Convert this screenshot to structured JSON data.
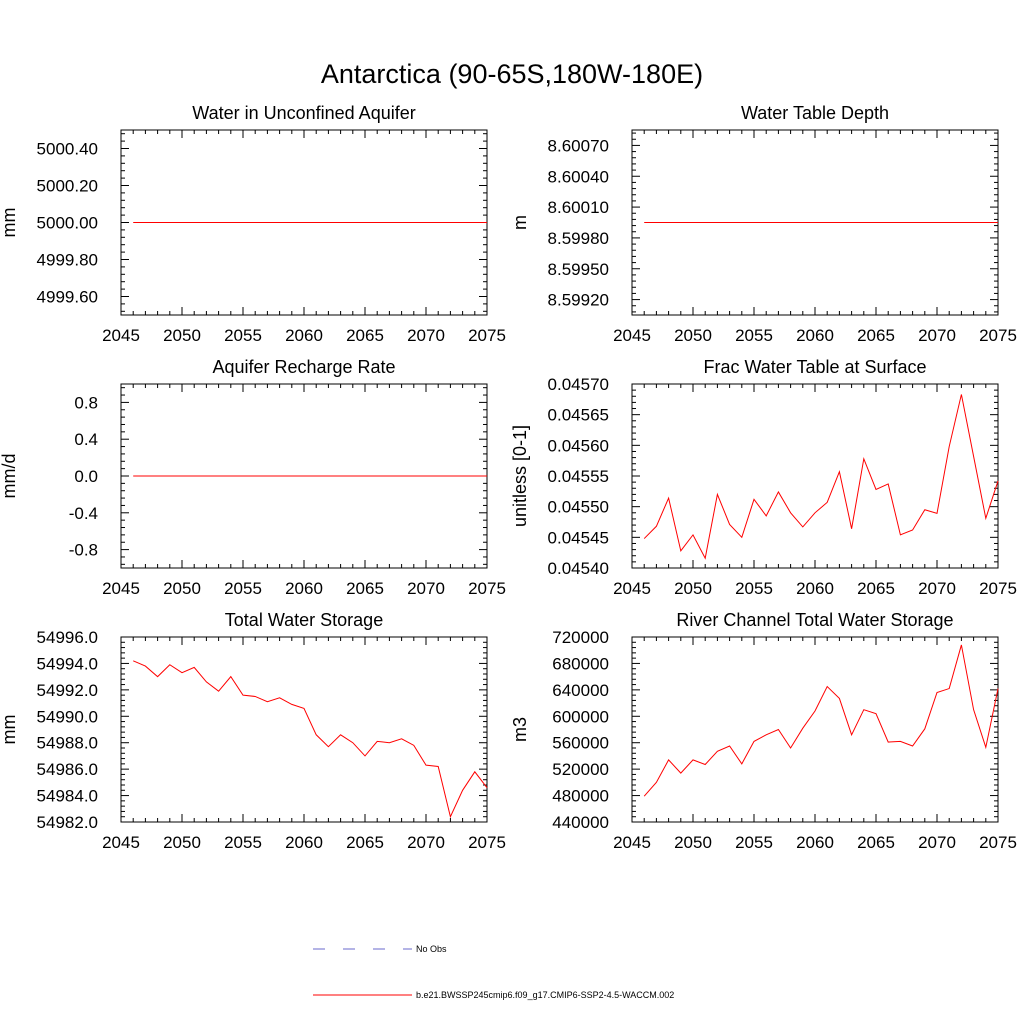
{
  "page": {
    "title": "Antarctica (90-65S,180W-180E)"
  },
  "chart_data": [
    {
      "type": "line",
      "title": "Water in Unconfined Aquifer",
      "xlabel": "",
      "ylabel": "mm",
      "xlim": [
        2045,
        2075
      ],
      "ylim": [
        4999.5,
        5000.5
      ],
      "xticks": [
        2045,
        2050,
        2055,
        2060,
        2065,
        2070,
        2075
      ],
      "xtick_labels": [
        "2045",
        "2050",
        "2055",
        "2060",
        "2065",
        "2070",
        "2075"
      ],
      "yticks": [
        4999.6,
        4999.8,
        5000.0,
        5000.2,
        5000.4
      ],
      "ytick_labels": [
        "4999.60",
        "4999.80",
        "5000.00",
        "5000.20",
        "5000.40"
      ],
      "series": [
        {
          "color": "#ff0000",
          "x": [
            2046,
            2075
          ],
          "y": [
            5000.0,
            5000.0
          ]
        }
      ]
    },
    {
      "type": "line",
      "title": "Water Table Depth",
      "xlabel": "",
      "ylabel": "m",
      "xlim": [
        2045,
        2075
      ],
      "ylim": [
        8.59905,
        8.60085
      ],
      "xticks": [
        2045,
        2050,
        2055,
        2060,
        2065,
        2070,
        2075
      ],
      "xtick_labels": [
        "2045",
        "2050",
        "2055",
        "2060",
        "2065",
        "2070",
        "2075"
      ],
      "yticks": [
        8.5992,
        8.5995,
        8.5998,
        8.6001,
        8.6004,
        8.6007
      ],
      "ytick_labels": [
        "8.59920",
        "8.59950",
        "8.59980",
        "8.60010",
        "8.60040",
        "8.60070"
      ],
      "series": [
        {
          "color": "#ff0000",
          "x": [
            2046,
            2075
          ],
          "y": [
            8.59995,
            8.59995
          ]
        }
      ]
    },
    {
      "type": "line",
      "title": "Aquifer Recharge Rate",
      "xlabel": "",
      "ylabel": "mm/d",
      "xlim": [
        2045,
        2075
      ],
      "ylim": [
        -1.0,
        1.0
      ],
      "xticks": [
        2045,
        2050,
        2055,
        2060,
        2065,
        2070,
        2075
      ],
      "xtick_labels": [
        "2045",
        "2050",
        "2055",
        "2060",
        "2065",
        "2070",
        "2075"
      ],
      "yticks": [
        -0.8,
        -0.4,
        0.0,
        0.4,
        0.8
      ],
      "ytick_labels": [
        "-0.8",
        "-0.4",
        "0.0",
        "0.4",
        "0.8"
      ],
      "series": [
        {
          "color": "#ff0000",
          "x": [
            2046,
            2075
          ],
          "y": [
            0.0,
            0.0
          ]
        }
      ]
    },
    {
      "type": "line",
      "title": "Frac Water Table at Surface",
      "xlabel": "",
      "ylabel": "unitless [0-1]",
      "xlim": [
        2045,
        2075
      ],
      "ylim": [
        0.0454,
        0.0457
      ],
      "xticks": [
        2045,
        2050,
        2055,
        2060,
        2065,
        2070,
        2075
      ],
      "xtick_labels": [
        "2045",
        "2050",
        "2055",
        "2060",
        "2065",
        "2070",
        "2075"
      ],
      "yticks": [
        0.0454,
        0.04545,
        0.0455,
        0.04555,
        0.0456,
        0.04565,
        0.0457
      ],
      "ytick_labels": [
        "0.04540",
        "0.04545",
        "0.04550",
        "0.04555",
        "0.04560",
        "0.04565",
        "0.04570"
      ],
      "series": [
        {
          "color": "#ff0000",
          "x": [
            2046,
            2047,
            2048,
            2049,
            2050,
            2051,
            2052,
            2053,
            2054,
            2055,
            2056,
            2057,
            2058,
            2059,
            2060,
            2061,
            2062,
            2063,
            2064,
            2065,
            2066,
            2067,
            2068,
            2069,
            2070,
            2071,
            2072,
            2073,
            2074,
            2075
          ],
          "y": [
            0.045448,
            0.045468,
            0.045514,
            0.045428,
            0.045454,
            0.045416,
            0.04552,
            0.045471,
            0.04545,
            0.045512,
            0.045485,
            0.045524,
            0.04549,
            0.045467,
            0.04549,
            0.045507,
            0.045557,
            0.045464,
            0.045578,
            0.045528,
            0.045537,
            0.045454,
            0.045462,
            0.045495,
            0.045489,
            0.045598,
            0.045683,
            0.045582,
            0.045481,
            0.045542
          ]
        }
      ]
    },
    {
      "type": "line",
      "title": "Total Water Storage",
      "xlabel": "",
      "ylabel": "mm",
      "xlim": [
        2045,
        2075
      ],
      "ylim": [
        54982.0,
        54996.0
      ],
      "xticks": [
        2045,
        2050,
        2055,
        2060,
        2065,
        2070,
        2075
      ],
      "xtick_labels": [
        "2045",
        "2050",
        "2055",
        "2060",
        "2065",
        "2070",
        "2075"
      ],
      "yticks": [
        54982.0,
        54984.0,
        54986.0,
        54988.0,
        54990.0,
        54992.0,
        54994.0,
        54996.0
      ],
      "ytick_labels": [
        "54982.0",
        "54984.0",
        "54986.0",
        "54988.0",
        "54990.0",
        "54992.0",
        "54994.0",
        "54996.0"
      ],
      "series": [
        {
          "color": "#ff0000",
          "x": [
            2046,
            2047,
            2048,
            2049,
            2050,
            2051,
            2052,
            2053,
            2054,
            2055,
            2056,
            2057,
            2058,
            2059,
            2060,
            2061,
            2062,
            2063,
            2064,
            2065,
            2066,
            2067,
            2068,
            2069,
            2070,
            2071,
            2072,
            2073,
            2074,
            2075
          ],
          "y": [
            54994.2,
            54993.8,
            54993.0,
            54993.9,
            54993.3,
            54993.7,
            54992.6,
            54991.9,
            54993.0,
            54991.6,
            54991.5,
            54991.1,
            54991.4,
            54990.9,
            54990.6,
            54988.6,
            54987.7,
            54988.6,
            54988.0,
            54987.0,
            54988.1,
            54988.0,
            54988.3,
            54987.8,
            54986.3,
            54986.2,
            54982.4,
            54984.4,
            54985.8,
            54984.6
          ]
        }
      ]
    },
    {
      "type": "line",
      "title": "River Channel Total Water Storage",
      "xlabel": "",
      "ylabel": "m3",
      "xlim": [
        2045,
        2075
      ],
      "ylim": [
        440000,
        720000
      ],
      "xticks": [
        2045,
        2050,
        2055,
        2060,
        2065,
        2070,
        2075
      ],
      "xtick_labels": [
        "2045",
        "2050",
        "2055",
        "2060",
        "2065",
        "2070",
        "2075"
      ],
      "yticks": [
        440000,
        480000,
        520000,
        560000,
        600000,
        640000,
        680000,
        720000
      ],
      "ytick_labels": [
        "440000",
        "480000",
        "520000",
        "560000",
        "600000",
        "640000",
        "680000",
        "720000"
      ],
      "series": [
        {
          "color": "#ff0000",
          "x": [
            2046,
            2047,
            2048,
            2049,
            2050,
            2051,
            2052,
            2053,
            2054,
            2055,
            2056,
            2057,
            2058,
            2059,
            2060,
            2061,
            2062,
            2063,
            2064,
            2065,
            2066,
            2067,
            2068,
            2069,
            2070,
            2071,
            2072,
            2073,
            2074,
            2075
          ],
          "y": [
            479000,
            500000,
            534000,
            514000,
            534000,
            527000,
            547000,
            555000,
            528000,
            562000,
            572000,
            580000,
            552000,
            582000,
            608000,
            645000,
            627000,
            572000,
            610000,
            604000,
            561000,
            562000,
            555000,
            581000,
            636000,
            642000,
            708000,
            610000,
            553000,
            642000
          ]
        }
      ]
    }
  ],
  "legend": {
    "entries": [
      {
        "label": "No Obs",
        "color": "#6a6acd",
        "dash": "dashed"
      },
      {
        "label": "b.e21.BWSSP245cmip6.f09_g17.CMIP6-SSP2-4.5-WACCM.002",
        "color": "#ff0000",
        "dash": "solid"
      }
    ]
  }
}
